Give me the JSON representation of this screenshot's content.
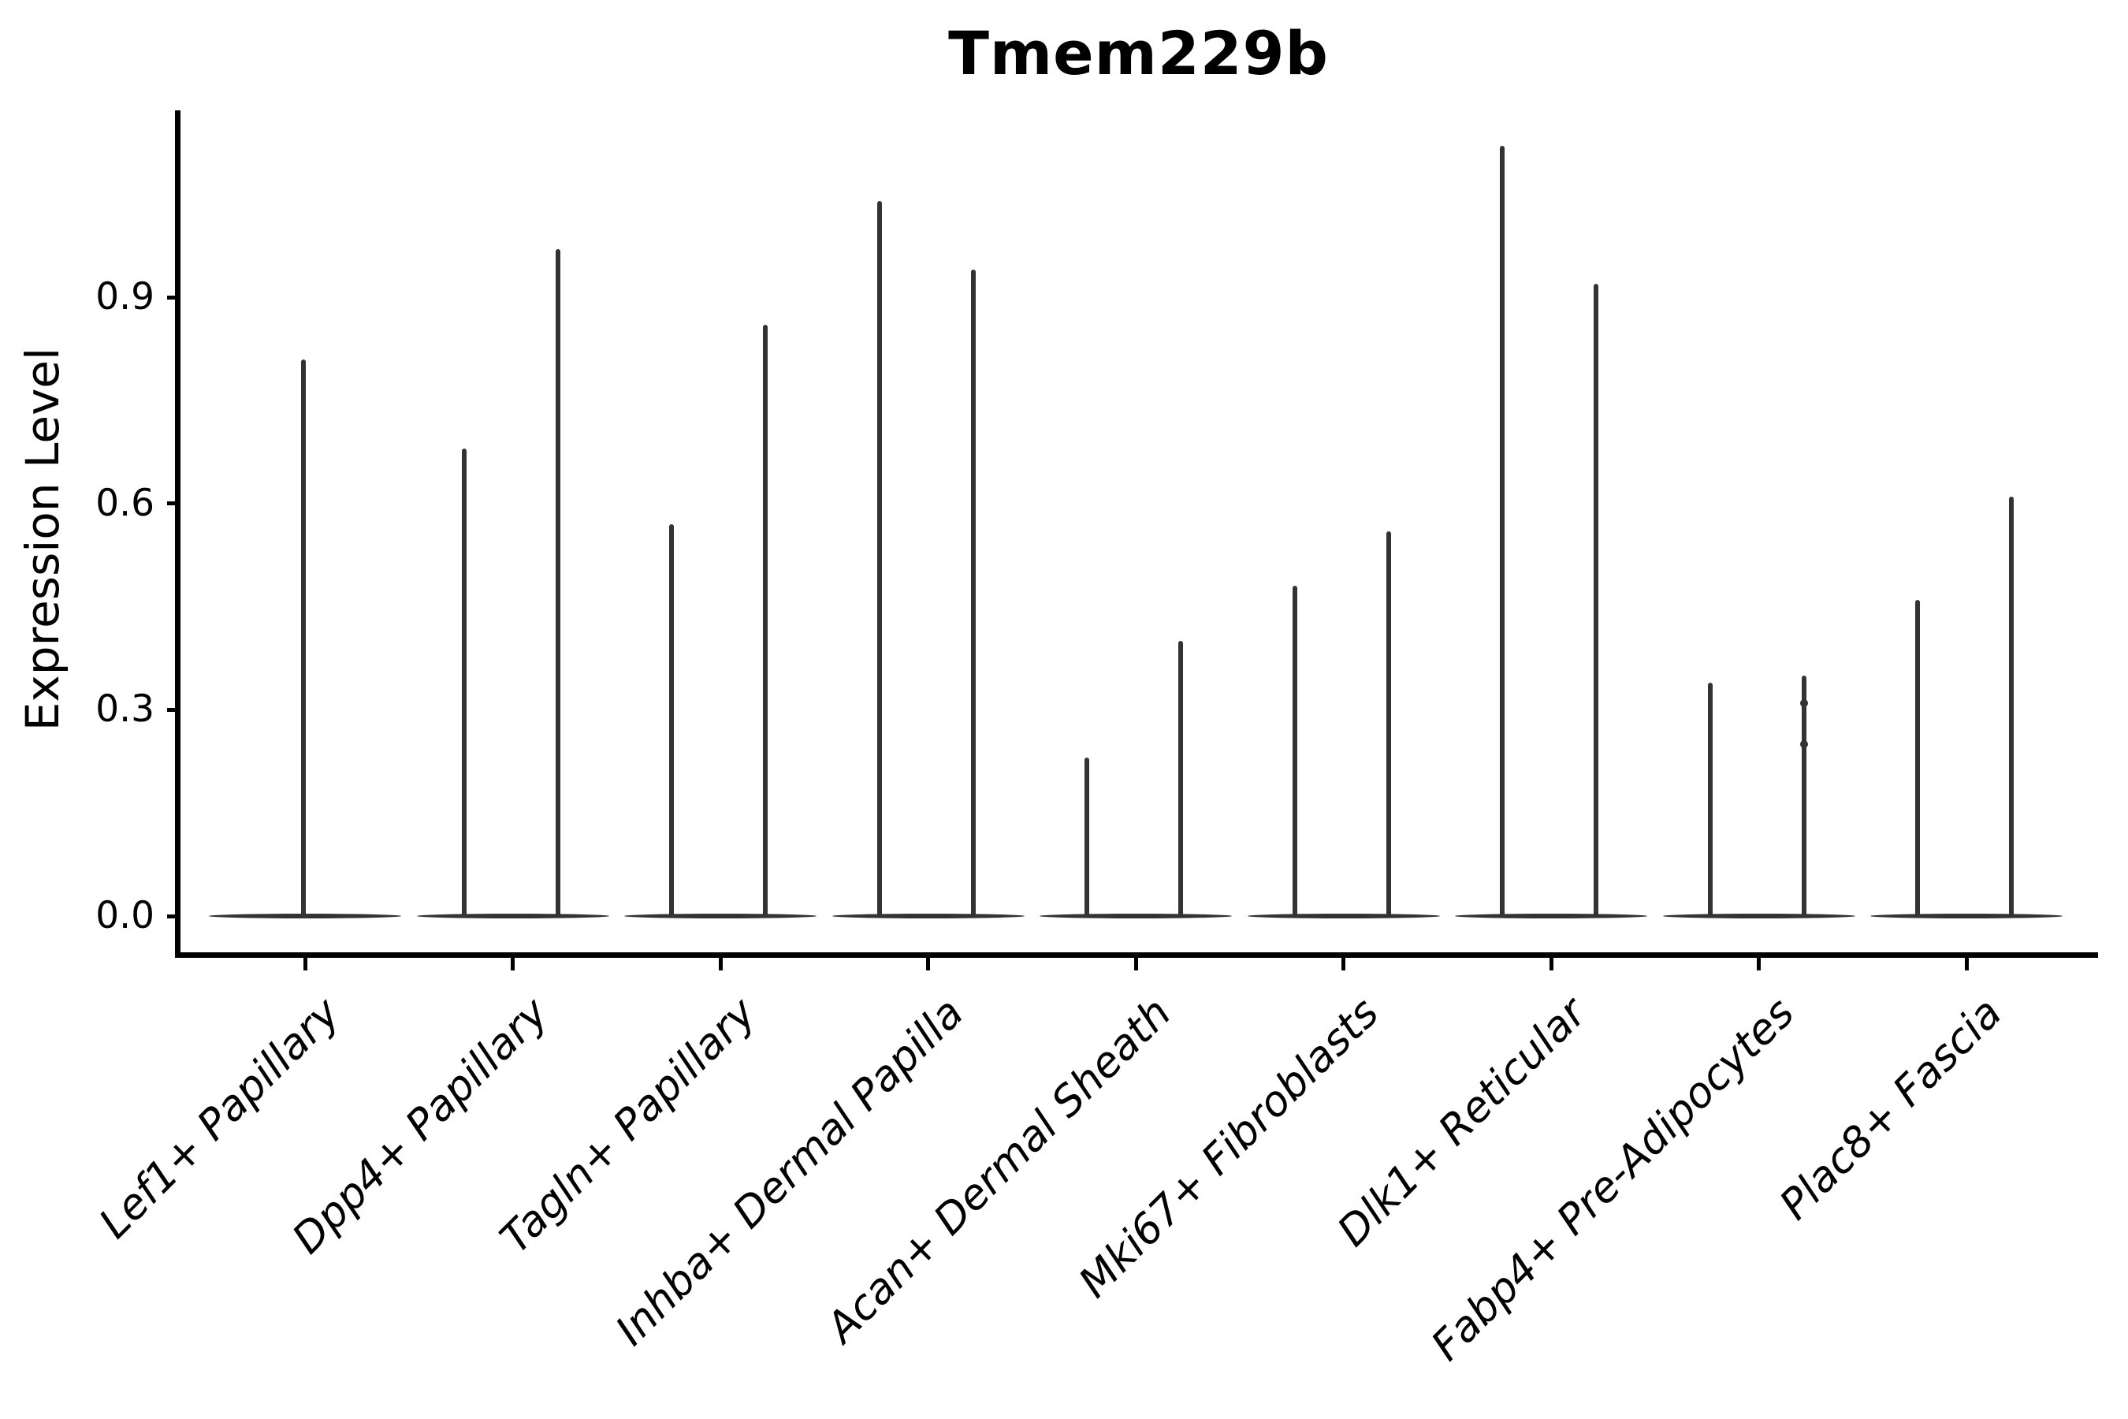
{
  "chart_data": {
    "type": "violin",
    "title": "Tmem229b",
    "ylabel": "Expression Level",
    "xlabel": "",
    "grid": false,
    "legend": "none",
    "background": "#ffffff",
    "y_ticks": [
      {
        "label": "0.0",
        "value": 0.0
      },
      {
        "label": "0.3",
        "value": 0.3
      },
      {
        "label": "0.6",
        "value": 0.6
      },
      {
        "label": "0.9",
        "value": 0.9
      }
    ],
    "y_range_shown": [
      -0.06,
      1.17
    ],
    "categories": [
      "Lef1+ Papillary",
      "Dpp4+ Papillary",
      "Tagln+ Papillary",
      "Inhba+ Dermal Papilla",
      "Acan+ Dermal Sheath",
      "Mki67+ Fibroblasts",
      "Dlk1+ Reticular",
      "Fabp4+ Pre-Adipocytes",
      "Plac8+ Fascia"
    ],
    "series": [
      {
        "category": "Lef1+ Papillary",
        "violin_maxima": [
          0.81
        ]
      },
      {
        "category": "Dpp4+ Papillary",
        "violin_maxima": [
          0.68,
          0.97
        ]
      },
      {
        "category": "Tagln+ Papillary",
        "violin_maxima": [
          0.57,
          0.86
        ]
      },
      {
        "category": "Inhba+ Dermal Papilla",
        "violin_maxima": [
          1.04,
          0.94
        ]
      },
      {
        "category": "Acan+ Dermal Sheath",
        "violin_maxima": [
          0.23,
          0.4
        ]
      },
      {
        "category": "Mki67+ Fibroblasts",
        "violin_maxima": [
          0.48,
          0.56
        ]
      },
      {
        "category": "Dlk1+ Reticular",
        "violin_maxima": [
          1.12,
          0.92
        ]
      },
      {
        "category": "Fabp4+ Pre-Adipocytes",
        "violin_maxima": [
          0.34,
          0.35
        ]
      },
      {
        "category": "Plac8+ Fascia",
        "violin_maxima": [
          0.46,
          0.61
        ]
      }
    ],
    "point_markers": [
      {
        "category_index": 7,
        "violin_index": 1,
        "values": [
          0.31,
          0.25
        ]
      }
    ],
    "shape_note": "Each violin collapses to a thin vertical spike (max expression) rising from a wide flat base at 0; categories 2-9 contain two violins, category 1 a single centered violin."
  },
  "colors": {
    "violin": "#333333",
    "axis": "#000000",
    "text": "#000000",
    "background": "#ffffff"
  }
}
